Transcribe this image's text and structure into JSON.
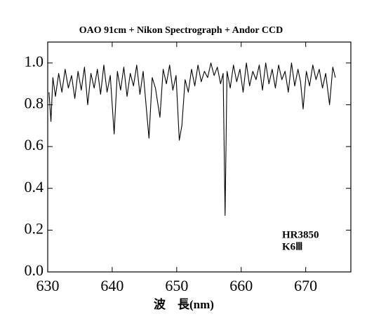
{
  "chart_data": {
    "type": "line",
    "title": "OAO 91cm + Nikon Spectrograph + Andor CCD",
    "x_label": "波　長(nm)",
    "annotations": [
      "HR3850",
      "K6Ⅲ"
    ],
    "x": [
      630.2,
      630.5,
      630.8,
      631.2,
      631.7,
      632.2,
      632.7,
      633.2,
      633.7,
      634.2,
      634.7,
      635.2,
      635.7,
      636.2,
      636.7,
      637.2,
      637.7,
      638.2,
      638.7,
      639.2,
      639.7,
      640.3,
      640.8,
      641.3,
      641.8,
      642.3,
      642.8,
      643.3,
      643.8,
      644.3,
      644.8,
      645.3,
      645.7,
      646.2,
      646.7,
      647.4,
      647.9,
      648.4,
      648.9,
      649.4,
      649.9,
      650.4,
      650.8,
      651.3,
      651.8,
      652.3,
      652.8,
      653.3,
      653.8,
      654.3,
      654.8,
      655.3,
      655.8,
      656.3,
      656.8,
      657.2,
      657.5,
      657.8,
      658.3,
      658.8,
      659.3,
      659.8,
      660.3,
      660.8,
      661.3,
      661.8,
      662.3,
      662.8,
      663.3,
      663.8,
      664.3,
      664.8,
      665.3,
      665.8,
      666.3,
      666.8,
      667.3,
      667.8,
      668.3,
      668.8,
      669.2,
      669.6,
      670.1,
      670.6,
      671.1,
      671.6,
      672.1,
      672.6,
      673.1,
      673.7,
      674.2,
      674.6
    ],
    "series": [
      {
        "color": "#000000",
        "values": [
          0.86,
          0.72,
          0.93,
          0.84,
          0.95,
          0.86,
          0.97,
          0.88,
          0.94,
          0.83,
          0.96,
          0.87,
          0.98,
          0.8,
          0.95,
          0.88,
          0.97,
          0.85,
          0.99,
          0.86,
          0.94,
          0.66,
          0.96,
          0.87,
          0.98,
          0.84,
          0.95,
          0.89,
          0.99,
          0.85,
          0.96,
          0.78,
          0.64,
          0.93,
          0.88,
          0.74,
          0.97,
          0.9,
          0.99,
          0.87,
          0.94,
          0.63,
          0.7,
          0.92,
          0.86,
          0.97,
          0.89,
          0.99,
          0.91,
          0.96,
          0.93,
          1.0,
          0.94,
          0.98,
          0.9,
          0.95,
          0.27,
          0.96,
          0.88,
          0.99,
          0.91,
          0.97,
          0.86,
          1.0,
          0.89,
          0.96,
          0.92,
          0.99,
          0.87,
          1.0,
          0.9,
          0.97,
          0.88,
          0.99,
          0.92,
          0.96,
          0.86,
          1.0,
          0.89,
          0.97,
          0.91,
          0.78,
          0.96,
          0.89,
          0.99,
          0.92,
          0.97,
          0.88,
          0.95,
          0.8,
          0.98,
          0.93
        ]
      }
    ],
    "xlim": [
      630,
      677
    ],
    "xticks": [
      630,
      640,
      650,
      660,
      670
    ],
    "ylim": [
      0,
      1.1
    ],
    "yticks": [
      {
        "value": 0,
        "label": "0.0"
      },
      0.2,
      0.4,
      0.6,
      0.8,
      {
        "value": 1,
        "label": "1.0"
      }
    ],
    "grid": false
  }
}
